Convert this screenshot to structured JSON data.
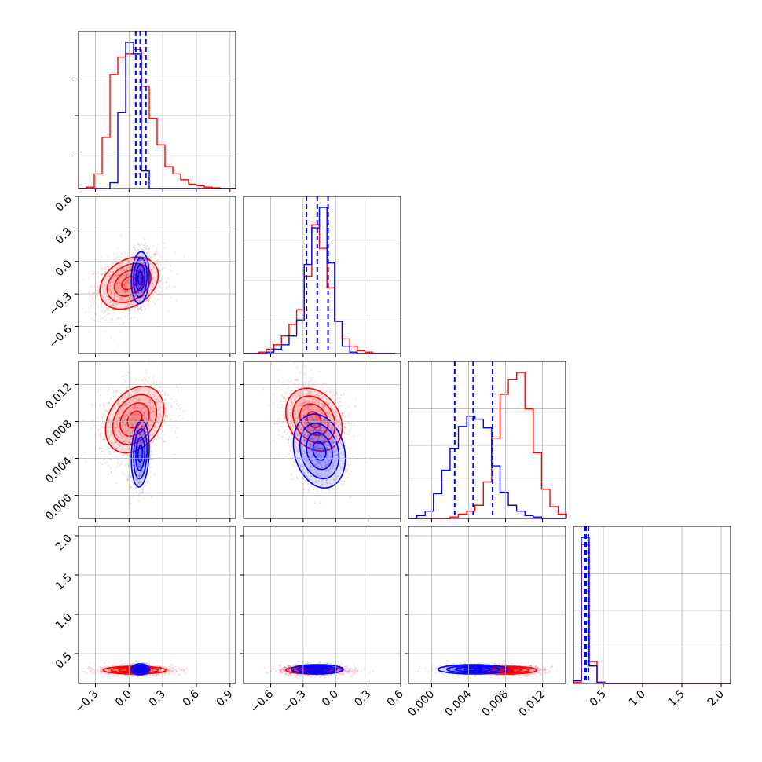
{
  "chart_data": {
    "type": "corner",
    "colors": {
      "red": "#ff0000",
      "blue": "#0000ff",
      "grid": "#b0b0b0"
    },
    "parameters": [
      {
        "range": [
          -0.45,
          0.95
        ],
        "ticks": [
          -0.3,
          0.0,
          0.3,
          0.6,
          0.9
        ],
        "tick_labels": [
          "−0.3",
          "0.0",
          "0.3",
          "0.6",
          "0.9"
        ],
        "quantiles_blue": [
          0.06,
          0.1,
          0.15
        ],
        "hist_bin_edges": [
          -0.45,
          -0.38,
          -0.31,
          -0.24,
          -0.17,
          -0.1,
          -0.03,
          0.04,
          0.11,
          0.18,
          0.25,
          0.32,
          0.39,
          0.46,
          0.53,
          0.6,
          0.67,
          0.74,
          0.81,
          0.88,
          0.95
        ],
        "hist_red": [
          0,
          0.01,
          0.1,
          0.35,
          0.78,
          0.9,
          0.92,
          0.95,
          0.7,
          0.48,
          0.3,
          0.15,
          0.1,
          0.06,
          0.03,
          0.02,
          0.01,
          0.005,
          0,
          0
        ],
        "hist_blue": [
          0,
          0,
          0,
          0,
          0.04,
          0.52,
          1.0,
          0.92,
          0.12,
          0,
          0,
          0,
          0,
          0,
          0,
          0,
          0,
          0,
          0,
          0
        ]
      },
      {
        "range": [
          -0.85,
          0.6
        ],
        "ticks": [
          -0.6,
          -0.3,
          0.0,
          0.3,
          0.6
        ],
        "tick_labels": [
          "−0.6",
          "−0.3",
          "0.0",
          "0.3",
          "0.6"
        ],
        "quantiles_blue": [
          -0.27,
          -0.17,
          -0.07
        ],
        "hist_bin_edges": [
          -0.85,
          -0.78,
          -0.71,
          -0.64,
          -0.57,
          -0.5,
          -0.43,
          -0.36,
          -0.29,
          -0.22,
          -0.15,
          -0.08,
          -0.01,
          0.06,
          0.13,
          0.2,
          0.27,
          0.34,
          0.41,
          0.48,
          0.55
        ],
        "hist_red": [
          0,
          0,
          0.01,
          0.03,
          0.06,
          0.12,
          0.2,
          0.3,
          0.53,
          0.88,
          0.72,
          0.45,
          0.22,
          0.1,
          0.05,
          0.02,
          0.01,
          0,
          0,
          0
        ],
        "hist_blue": [
          0,
          0,
          0,
          0.01,
          0.03,
          0.06,
          0.12,
          0.23,
          0.61,
          0.86,
          1.0,
          0.62,
          0.22,
          0.05,
          0.01,
          0,
          0,
          0,
          0,
          0
        ]
      },
      {
        "range": [
          -0.0025,
          0.0145
        ],
        "ticks": [
          0.0,
          0.004,
          0.008,
          0.012
        ],
        "tick_labels": [
          "0.000",
          "0.004",
          "0.008",
          "0.012"
        ],
        "quantiles_blue": [
          0.0025,
          0.0045,
          0.0066
        ],
        "hist_bin_edges": [
          -0.0025,
          -0.0016,
          -0.0007,
          0.0002,
          0.0011,
          0.002,
          0.0029,
          0.0038,
          0.0047,
          0.0056,
          0.0065,
          0.0074,
          0.0083,
          0.0092,
          0.0101,
          0.011,
          0.0119,
          0.0128,
          0.0137,
          0.0146
        ],
        "hist_red": [
          0,
          0,
          0,
          0,
          0,
          0.01,
          0.03,
          0.05,
          0.09,
          0.25,
          0.55,
          0.85,
          0.95,
          1.0,
          0.75,
          0.45,
          0.2,
          0.08,
          0.03
        ],
        "hist_blue": [
          0,
          0.02,
          0.05,
          0.17,
          0.33,
          0.48,
          0.63,
          0.7,
          0.68,
          0.62,
          0.36,
          0.18,
          0.09,
          0.05,
          0.02,
          0.01,
          0,
          0,
          0
        ]
      },
      {
        "range": [
          0.12,
          2.12
        ],
        "ticks": [
          0.5,
          1.0,
          1.5,
          2.0
        ],
        "tick_labels": [
          "0.5",
          "1.0",
          "1.5",
          "2.0"
        ],
        "quantiles_blue": [
          0.26,
          0.28,
          0.31
        ],
        "hist_bin_edges": [
          0.12,
          0.22,
          0.32,
          0.42,
          0.52,
          0.62,
          0.72,
          0.82,
          0.92,
          1.02,
          1.12,
          1.22,
          1.32,
          1.42,
          1.52,
          1.62,
          1.72,
          1.82,
          1.92,
          2.02,
          2.12
        ],
        "hist_red": [
          0.01,
          0.95,
          0.15,
          0.01,
          0,
          0,
          0,
          0,
          0,
          0,
          0,
          0,
          0,
          0,
          0,
          0,
          0,
          0,
          0,
          0
        ],
        "hist_blue": [
          0.02,
          1.0,
          0.12,
          0.005,
          0,
          0,
          0,
          0,
          0,
          0,
          0,
          0,
          0,
          0,
          0,
          0,
          0,
          0,
          0,
          0
        ]
      }
    ],
    "pairs": [
      {
        "row": 1,
        "col": 0,
        "red": {
          "center": [
            0.0,
            -0.2
          ],
          "sd": [
            0.13,
            0.12
          ],
          "rho": 0.3
        },
        "blue": {
          "center": [
            0.1,
            -0.15
          ],
          "sd": [
            0.04,
            0.12
          ],
          "rho": 0.1
        }
      },
      {
        "row": 2,
        "col": 0,
        "red": {
          "center": [
            0.05,
            0.0082
          ],
          "sd": [
            0.13,
            0.0018
          ],
          "rho": 0.3
        },
        "blue": {
          "center": [
            0.1,
            0.0045
          ],
          "sd": [
            0.04,
            0.0018
          ],
          "rho": 0.15
        }
      },
      {
        "row": 2,
        "col": 1,
        "red": {
          "center": [
            -0.2,
            0.0082
          ],
          "sd": [
            0.13,
            0.0017
          ],
          "rho": -0.25
        },
        "blue": {
          "center": [
            -0.15,
            0.0048
          ],
          "sd": [
            0.12,
            0.002
          ],
          "rho": -0.2
        }
      },
      {
        "row": 3,
        "col": 0,
        "red": {
          "center": [
            0.05,
            0.29
          ],
          "sd": [
            0.14,
            0.025
          ],
          "rho": 0.0
        },
        "blue": {
          "center": [
            0.1,
            0.3
          ],
          "sd": [
            0.04,
            0.035
          ],
          "rho": 0.0
        }
      },
      {
        "row": 3,
        "col": 1,
        "red": {
          "center": [
            -0.2,
            0.29
          ],
          "sd": [
            0.13,
            0.025
          ],
          "rho": 0.0
        },
        "blue": {
          "center": [
            -0.17,
            0.3
          ],
          "sd": [
            0.12,
            0.03
          ],
          "rho": 0.0
        }
      },
      {
        "row": 3,
        "col": 2,
        "red": {
          "center": [
            0.008,
            0.29
          ],
          "sd": [
            0.0017,
            0.025
          ],
          "rho": 0.0
        },
        "blue": {
          "center": [
            0.0045,
            0.3
          ],
          "sd": [
            0.0019,
            0.03
          ],
          "rho": 0.0
        }
      }
    ],
    "contour_levels_sigma": [
      0.5,
      1.0,
      1.5,
      2.0
    ],
    "grid": true
  }
}
